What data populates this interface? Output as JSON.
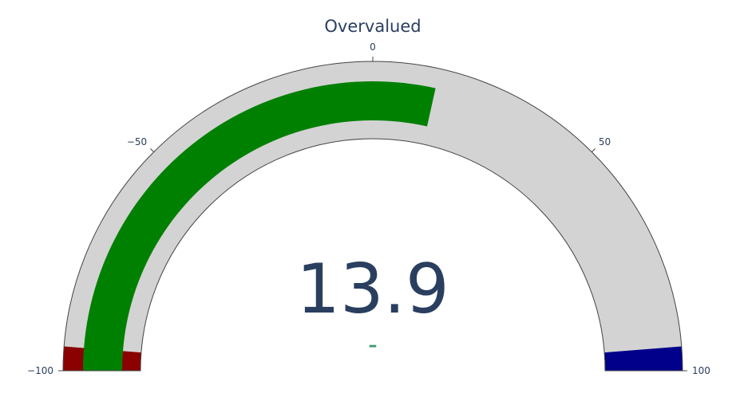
{
  "chart_data": {
    "type": "gauge",
    "title": "Overvalued",
    "value": 13.9,
    "value_label": "13.9",
    "delta_label": "–",
    "axis_range": [
      -100,
      100
    ],
    "ticks": [
      {
        "value": -100,
        "label": "−100"
      },
      {
        "value": -50,
        "label": "−50"
      },
      {
        "value": 0,
        "label": "0"
      },
      {
        "value": 50,
        "label": "50"
      },
      {
        "value": 100,
        "label": "100"
      }
    ],
    "bar": {
      "from": -100,
      "to": 13.9,
      "color": "#008000"
    },
    "steps": [
      {
        "range": [
          -100,
          -95
        ],
        "color": "#8b0000"
      },
      {
        "range": [
          95,
          100
        ],
        "color": "#00008b"
      }
    ],
    "background_color": "#d3d3d3",
    "border_color": "#444444",
    "title_color": "#2a3f5f",
    "delta_color": "#3d9970"
  }
}
